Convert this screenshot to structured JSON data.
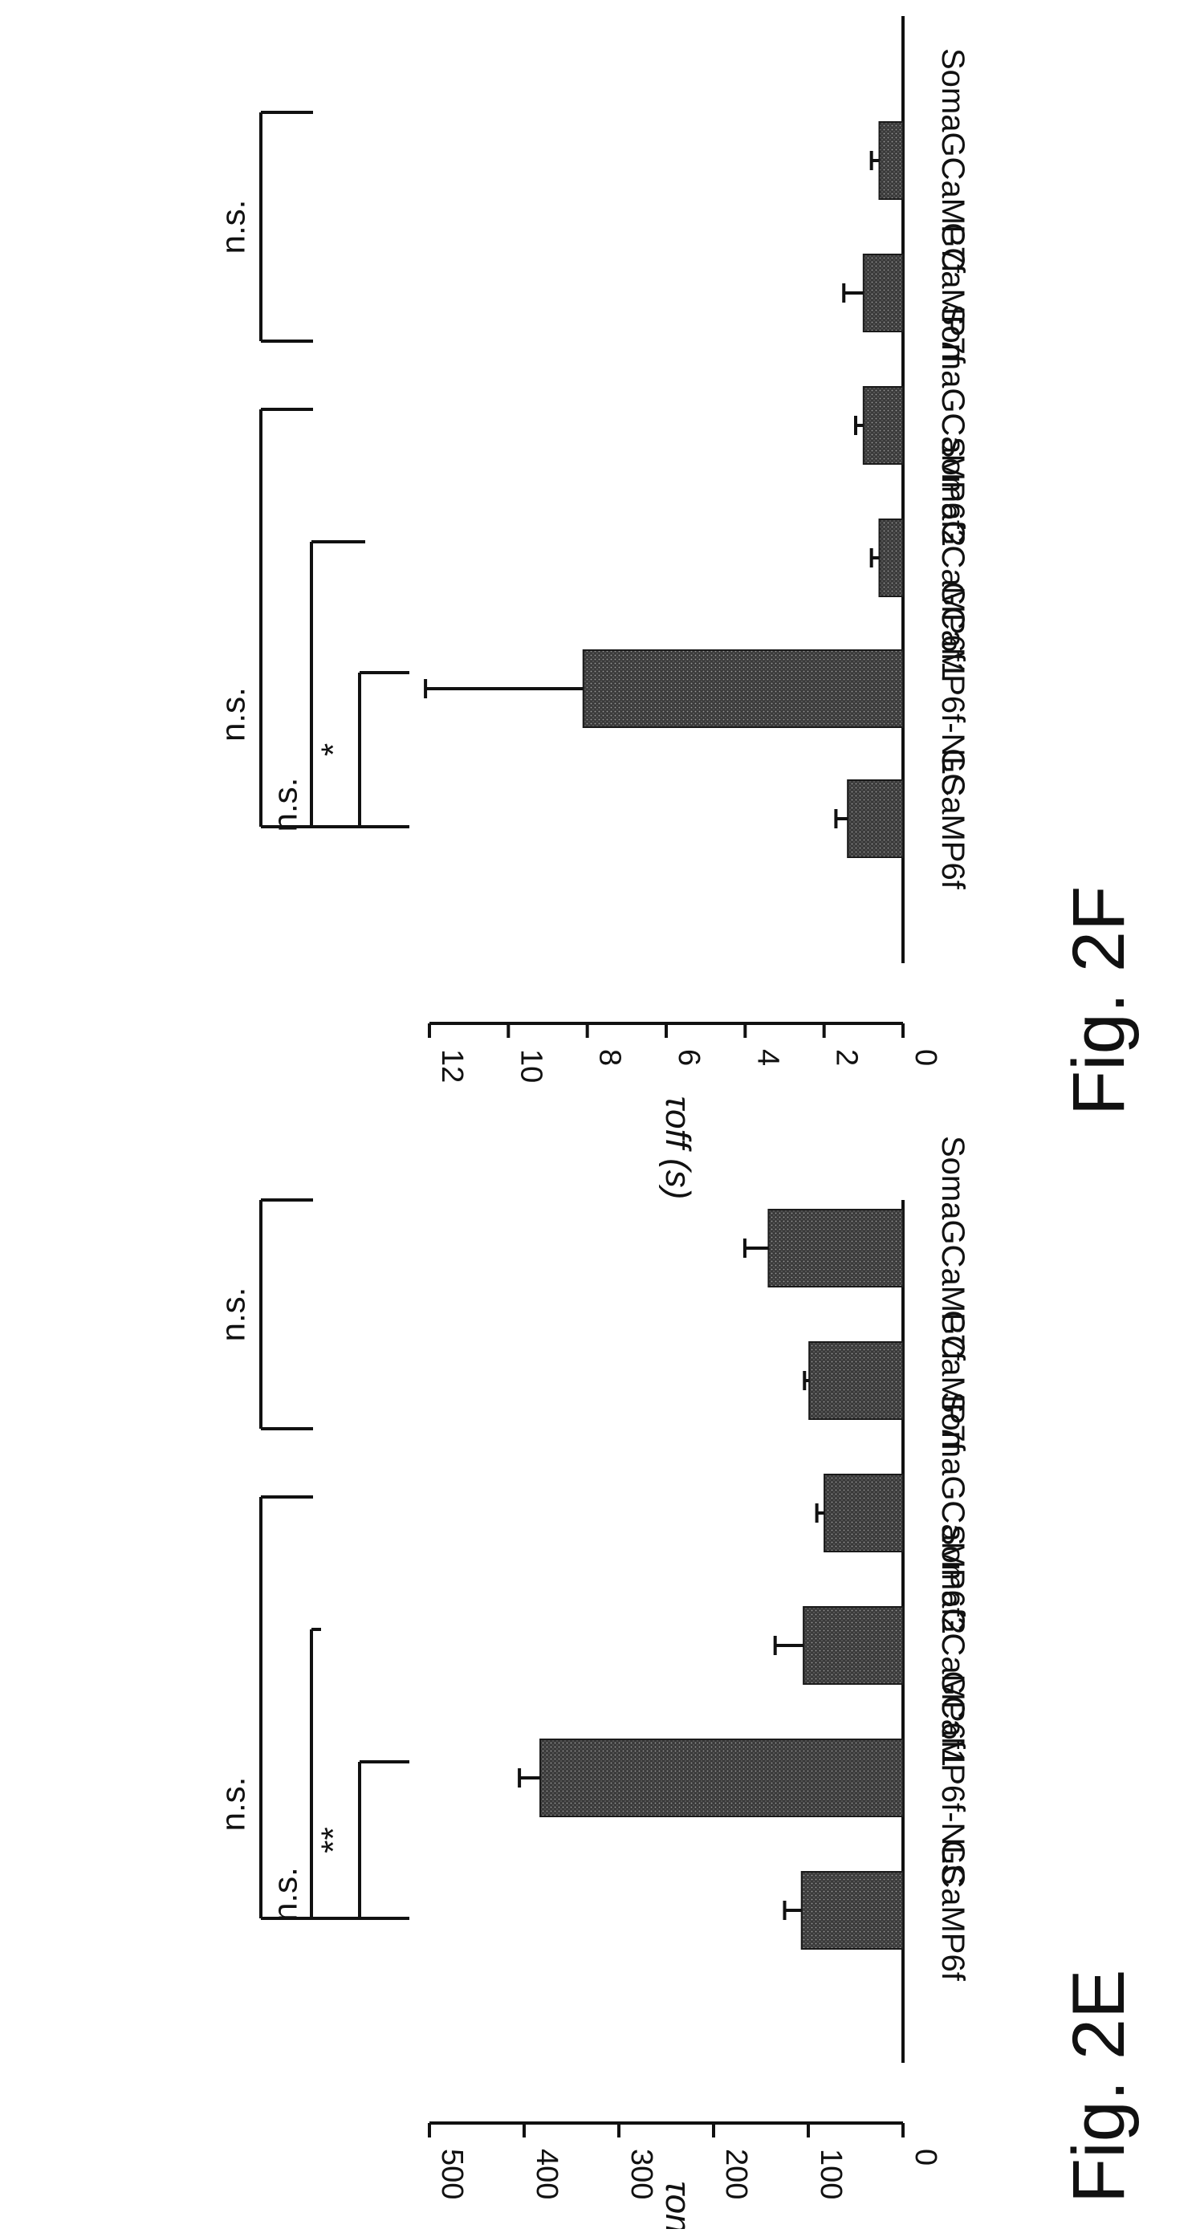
{
  "figure_labels": {
    "left": "Fig. 2E",
    "right": "Fig. 2F"
  },
  "colors": {
    "bar": "#2a2a2a",
    "ink": "#111111"
  },
  "chart_data": [
    {
      "id": "fig2E",
      "type": "bar",
      "orientation": "vertical (figure rotated 90 degrees clockwise)",
      "categories": [
        "GCaMP6f",
        "GCaMP6f-NLS",
        "SomaGCaMP6f1",
        "SomaGCaMP6f2",
        "GCaMP7f",
        "SomaGCaMP7f"
      ],
      "values": [
        107,
        383,
        105,
        83,
        99,
        142
      ],
      "errors": [
        18,
        22,
        30,
        8,
        5,
        25
      ],
      "ylabel": "τon (ms)",
      "ylim": [
        0,
        500
      ],
      "yticks": [
        "0",
        "100",
        "200",
        "300",
        "400",
        "500"
      ],
      "ytick_values": [
        0,
        100,
        200,
        300,
        400,
        500
      ],
      "significance": [
        {
          "from": 0,
          "to": 1,
          "label": "**"
        },
        {
          "from": 0,
          "to": 2,
          "label": "n.s."
        },
        {
          "from": 0,
          "to": 3,
          "label": "n.s."
        },
        {
          "from": 4,
          "to": 5,
          "label": "n.s."
        }
      ]
    },
    {
      "id": "fig2F",
      "type": "bar",
      "orientation": "vertical (figure rotated 90 degrees clockwise)",
      "categories": [
        "GCaMP6f",
        "GCaMP6f-NLS",
        "SomaGCaMP6f1",
        "SomaGCaMP6f2",
        "GCaMP7f",
        "SomaGCaMP7f"
      ],
      "values": [
        1.4,
        8.1,
        0.6,
        1.0,
        1.0,
        0.6
      ],
      "errors": [
        0.3,
        4.0,
        0.2,
        0.2,
        0.5,
        0.2
      ],
      "ylabel": "τoff (s)",
      "ylim": [
        0,
        12
      ],
      "yticks": [
        "0",
        "2",
        "4",
        "6",
        "8",
        "10",
        "12"
      ],
      "ytick_values": [
        0,
        2,
        4,
        6,
        8,
        10,
        12
      ],
      "significance": [
        {
          "from": 0,
          "to": 1,
          "label": "*"
        },
        {
          "from": 0,
          "to": 2,
          "label": "n.s."
        },
        {
          "from": 0,
          "to": 3,
          "label": "n.s."
        },
        {
          "from": 4,
          "to": 5,
          "label": "n.s."
        }
      ]
    }
  ]
}
